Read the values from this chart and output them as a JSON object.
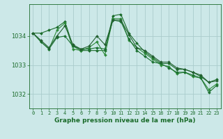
{
  "title": "Graphe pression niveau de la mer (hPa)",
  "bg_color": "#cce8e8",
  "grid_color": "#aacccc",
  "line_colors": [
    "#1a6b2a",
    "#2d8b3a",
    "#1a7030",
    "#226030"
  ],
  "xlim": [
    -0.5,
    23.5
  ],
  "ylim": [
    1031.5,
    1035.1
  ],
  "yticks": [
    1032,
    1033,
    1034
  ],
  "xticks": [
    0,
    1,
    2,
    3,
    4,
    5,
    6,
    7,
    8,
    9,
    10,
    11,
    12,
    13,
    14,
    15,
    16,
    17,
    18,
    19,
    20,
    21,
    22,
    23
  ],
  "series": [
    [
      1034.1,
      1034.1,
      1034.2,
      1034.3,
      1034.5,
      1033.65,
      1033.5,
      1033.5,
      1033.5,
      1033.5,
      1034.7,
      1034.75,
      1034.1,
      1033.75,
      1033.45,
      1033.25,
      1033.05,
      1033.05,
      1032.85,
      1032.85,
      1032.75,
      1032.6,
      1032.4,
      1032.5
    ],
    [
      1034.1,
      1033.8,
      1033.55,
      1034.2,
      1034.45,
      1033.55,
      1033.5,
      1033.6,
      1033.8,
      1033.35,
      1034.6,
      1034.6,
      1033.85,
      1033.6,
      1033.4,
      1033.2,
      1033.0,
      1032.95,
      1032.7,
      1032.75,
      1032.6,
      1032.55,
      1032.15,
      1032.35
    ],
    [
      1034.1,
      1033.8,
      1033.55,
      1033.95,
      1034.0,
      1033.65,
      1033.55,
      1033.55,
      1033.6,
      1033.55,
      1034.55,
      1034.5,
      1033.9,
      1033.5,
      1033.3,
      1033.1,
      1033.05,
      1032.9,
      1032.75,
      1032.75,
      1032.65,
      1032.55,
      1032.05,
      1032.3
    ],
    [
      1034.1,
      1033.85,
      1033.6,
      1034.0,
      1034.35,
      1033.7,
      1033.55,
      1033.65,
      1034.0,
      1033.7,
      1034.55,
      1034.55,
      1034.05,
      1033.6,
      1033.5,
      1033.3,
      1033.1,
      1033.1,
      1032.9,
      1032.85,
      1032.75,
      1032.65,
      1032.4,
      1032.45
    ]
  ],
  "xlabel_fontsize": 6.0,
  "ylabel_fontsize": 6.0,
  "tick_fontsize": 5.0,
  "title_fontsize": 6.5,
  "linewidth": 0.8,
  "markersize": 2.0
}
